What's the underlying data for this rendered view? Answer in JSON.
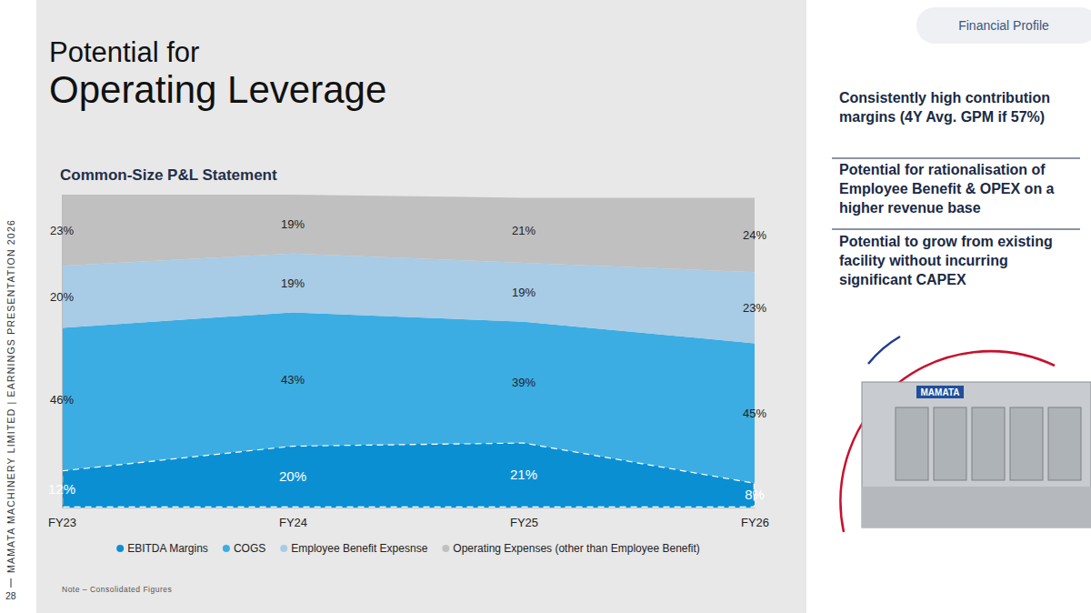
{
  "page": {
    "header_tab": "Financial Profile",
    "title_line1": "Potential for",
    "title_line2": "Operating Leverage",
    "side_text": "MAMATA MACHINERY LIMITED | EARNINGS PRESENTATION 2026",
    "page_number": 28,
    "note": "Note – Consolidated Figures",
    "points": [
      "Consistently high contribution margins (4Y Avg. GPM if 57%)",
      "Potential for rationalisation of Employee Benefit & OPEX on a higher revenue base",
      "Potential to grow from existing facility without incurring significant CAPEX"
    ],
    "image_label": "MAMATA"
  },
  "chart_data": {
    "type": "area",
    "title": "Common-Size P&L Statement",
    "categories": [
      "FY23",
      "FY24",
      "FY25",
      "FY26"
    ],
    "stacked": true,
    "data_labels": true,
    "tick_labels": "x",
    "legend": "bottom",
    "ylim": [
      0,
      101
    ],
    "series": [
      {
        "name": "EBITDA Margins",
        "color": "#0b8fd3",
        "values": [
          12,
          20,
          21,
          8
        ],
        "value_labels": [
          "12%",
          "20%",
          "21%",
          "8%"
        ],
        "line_style": "dashed"
      },
      {
        "name": "COGS",
        "color": "#3badE3",
        "values": [
          46,
          43,
          39,
          45
        ],
        "value_labels": [
          "46%",
          "43%",
          "39%",
          "45%"
        ]
      },
      {
        "name": "Employee Benefit Expesnse",
        "color": "#a8cbe6",
        "values": [
          20,
          19,
          19,
          23
        ],
        "value_labels": [
          "20%",
          "19%",
          "19%",
          "23%"
        ]
      },
      {
        "name": "Operating Expenses (other than Employee Benefit)",
        "color": "#c0c0c0",
        "values": [
          23,
          19,
          21,
          24
        ],
        "value_labels": [
          "23%",
          "19%",
          "21%",
          "24%"
        ]
      }
    ]
  }
}
